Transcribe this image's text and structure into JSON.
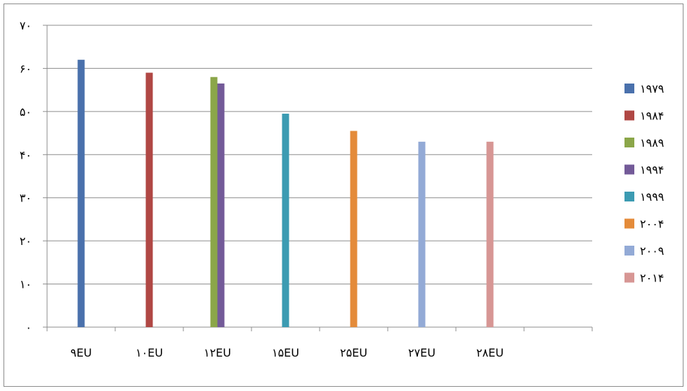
{
  "chart_data": {
    "type": "bar",
    "title": "",
    "xlabel": "",
    "ylabel": "",
    "ylim": [
      0,
      70
    ],
    "yticks": [
      0,
      10,
      20,
      30,
      40,
      50,
      60,
      70
    ],
    "ytick_labels": [
      "٠",
      "١٠",
      "٢٠",
      "٣٠",
      "۴٠",
      "۵٠",
      "۶٠",
      "٧٠"
    ],
    "categories": [
      "٩EU",
      "١٠EU",
      "١٢EU",
      "١۵EU",
      "٢۵EU",
      "٢٧EU",
      "٢٨EU",
      ""
    ],
    "grid": true,
    "legend_position": "right",
    "series": [
      {
        "name": "١٩٧٩",
        "color": "#4a71ac",
        "values": [
          62,
          null,
          null,
          null,
          null,
          null,
          null,
          null
        ]
      },
      {
        "name": "١٩٨۴",
        "color": "#b04744",
        "values": [
          null,
          59,
          null,
          null,
          null,
          null,
          null,
          null
        ]
      },
      {
        "name": "١٩٨٩",
        "color": "#8ba649",
        "values": [
          null,
          null,
          58,
          null,
          null,
          null,
          null,
          null
        ]
      },
      {
        "name": "١٩٩۴",
        "color": "#735a98",
        "values": [
          null,
          null,
          56.5,
          null,
          null,
          null,
          null,
          null
        ]
      },
      {
        "name": "١٩٩٩",
        "color": "#3c9bb2",
        "values": [
          null,
          null,
          null,
          49.5,
          null,
          null,
          null,
          null
        ]
      },
      {
        "name": "٢٠٠۴",
        "color": "#e48b3a",
        "values": [
          null,
          null,
          null,
          null,
          45.5,
          null,
          null,
          null
        ]
      },
      {
        "name": "٢٠٠٩",
        "color": "#93aad6",
        "values": [
          null,
          null,
          null,
          null,
          null,
          43,
          null,
          null
        ]
      },
      {
        "name": "٢٠١۴",
        "color": "#d79694",
        "values": [
          null,
          null,
          null,
          null,
          null,
          null,
          43,
          null
        ]
      }
    ]
  }
}
